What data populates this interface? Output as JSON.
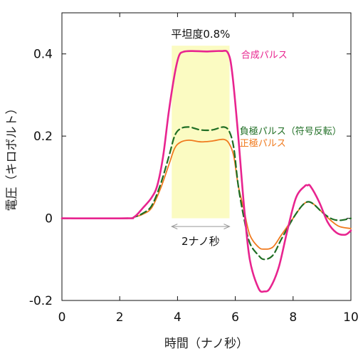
{
  "chart_data": {
    "type": "line",
    "xlabel": "時間（ナノ秒）",
    "ylabel": "電圧（キロボルト）",
    "xlim": [
      0,
      10
    ],
    "ylim": [
      -0.2,
      0.5
    ],
    "x_ticks": [
      0,
      2,
      4,
      6,
      8,
      10
    ],
    "y_ticks": [
      -0.2,
      0,
      0.2,
      0.4
    ],
    "x_tick_labels": [
      "0",
      "2",
      "4",
      "6",
      "8",
      "10"
    ],
    "y_tick_labels": [
      "-0.2",
      "0",
      "0.2",
      "0.4"
    ],
    "grid": false,
    "highlight": {
      "x_range": [
        3.8,
        5.8
      ],
      "y_range": [
        0,
        0.42
      ],
      "color": "#fbfbc2",
      "label": "平坦度0.8%"
    },
    "span_arrow": {
      "x_range": [
        3.8,
        5.8
      ],
      "y": -0.02,
      "label": "2ナノ秒"
    },
    "series": [
      {
        "name": "合成パルス",
        "color": "#e8248f",
        "style": "solid",
        "label_pos": [
          6.2,
          0.39
        ],
        "points": [
          [
            0,
            0
          ],
          [
            2.2,
            0
          ],
          [
            2.5,
            0.003
          ],
          [
            2.8,
            0.025
          ],
          [
            3.1,
            0.05
          ],
          [
            3.3,
            0.08
          ],
          [
            3.5,
            0.15
          ],
          [
            3.7,
            0.26
          ],
          [
            3.9,
            0.35
          ],
          [
            4.05,
            0.395
          ],
          [
            4.2,
            0.405
          ],
          [
            4.5,
            0.407
          ],
          [
            5.0,
            0.406
          ],
          [
            5.5,
            0.407
          ],
          [
            5.75,
            0.402
          ],
          [
            5.9,
            0.35
          ],
          [
            6.1,
            0.2
          ],
          [
            6.3,
            0.03
          ],
          [
            6.5,
            -0.1
          ],
          [
            6.8,
            -0.17
          ],
          [
            7.0,
            -0.178
          ],
          [
            7.2,
            -0.17
          ],
          [
            7.5,
            -0.12
          ],
          [
            7.8,
            -0.03
          ],
          [
            8.1,
            0.05
          ],
          [
            8.4,
            0.078
          ],
          [
            8.5,
            0.08
          ],
          [
            8.6,
            0.078
          ],
          [
            8.9,
            0.04
          ],
          [
            9.2,
            -0.01
          ],
          [
            9.5,
            -0.035
          ],
          [
            9.8,
            -0.04
          ],
          [
            10,
            -0.03
          ]
        ]
      },
      {
        "name": "負極パルス（符号反転）",
        "color": "#1f6e24",
        "style": "dashed",
        "label_pos": [
          6.15,
          0.205
        ],
        "points": [
          [
            0,
            0
          ],
          [
            2.2,
            0
          ],
          [
            2.5,
            0.003
          ],
          [
            2.8,
            0.012
          ],
          [
            3.1,
            0.03
          ],
          [
            3.4,
            0.08
          ],
          [
            3.7,
            0.15
          ],
          [
            3.9,
            0.2
          ],
          [
            4.1,
            0.218
          ],
          [
            4.4,
            0.222
          ],
          [
            4.8,
            0.215
          ],
          [
            5.2,
            0.215
          ],
          [
            5.6,
            0.222
          ],
          [
            5.8,
            0.21
          ],
          [
            5.95,
            0.17
          ],
          [
            6.1,
            0.08
          ],
          [
            6.3,
            0.0
          ],
          [
            6.5,
            -0.06
          ],
          [
            6.8,
            -0.09
          ],
          [
            7.0,
            -0.1
          ],
          [
            7.3,
            -0.09
          ],
          [
            7.6,
            -0.05
          ],
          [
            8.0,
            0.0
          ],
          [
            8.3,
            0.03
          ],
          [
            8.5,
            0.04
          ],
          [
            8.7,
            0.035
          ],
          [
            9.0,
            0.015
          ],
          [
            9.3,
            0.0
          ],
          [
            9.6,
            -0.005
          ],
          [
            10,
            0.0
          ]
        ]
      },
      {
        "name": "正極パルス",
        "color": "#f07a1e",
        "style": "solid",
        "label_pos": [
          6.15,
          0.175
        ],
        "points": [
          [
            0,
            0
          ],
          [
            2.2,
            0
          ],
          [
            2.5,
            0.003
          ],
          [
            2.8,
            0.01
          ],
          [
            3.1,
            0.025
          ],
          [
            3.4,
            0.07
          ],
          [
            3.7,
            0.13
          ],
          [
            3.9,
            0.17
          ],
          [
            4.1,
            0.185
          ],
          [
            4.4,
            0.19
          ],
          [
            4.8,
            0.186
          ],
          [
            5.2,
            0.188
          ],
          [
            5.6,
            0.192
          ],
          [
            5.8,
            0.18
          ],
          [
            5.95,
            0.15
          ],
          [
            6.1,
            0.08
          ],
          [
            6.3,
            0.02
          ],
          [
            6.5,
            -0.04
          ],
          [
            6.8,
            -0.07
          ],
          [
            7.0,
            -0.075
          ],
          [
            7.3,
            -0.07
          ],
          [
            7.6,
            -0.04
          ],
          [
            8.0,
            0.0
          ],
          [
            8.3,
            0.03
          ],
          [
            8.5,
            0.04
          ],
          [
            8.7,
            0.035
          ],
          [
            9.0,
            0.015
          ],
          [
            9.3,
            -0.005
          ],
          [
            9.6,
            -0.02
          ],
          [
            10,
            -0.025
          ]
        ]
      }
    ]
  }
}
